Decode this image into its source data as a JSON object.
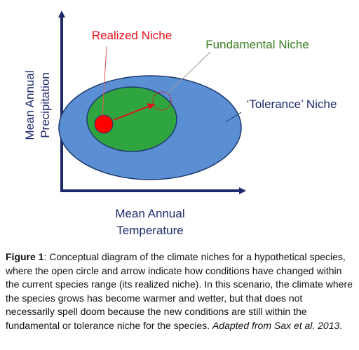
{
  "diagram": {
    "labels": {
      "realized_niche": "Realized Niche",
      "fundamental_niche": "Fundamental Niche",
      "tolerance_niche": "‘Tolerance’ Niche"
    },
    "y_axis_label": {
      "line1": "Mean Annual",
      "line2": "Precipitation"
    },
    "x_axis_label": {
      "line1": "Mean Annual",
      "line2": "Temperature"
    },
    "colors": {
      "realized": "#ff0000",
      "realized_label": "#e8101a",
      "fundamental": "#2fa53f",
      "fundamental_label": "#3b7f23",
      "tolerance": "#5b8fd4",
      "axis": "#1f2a6b",
      "arrow": "#e01020",
      "outline": "#1d3a6e"
    }
  },
  "caption": {
    "figure_label": "Figure 1",
    "text": ": Conceptual diagram of the climate niches for a hypothetical species, where the open circle and arrow indicate how conditions have changed within the current species range (its realized niche). In this scenario, the climate where the species grows has become warmer and wetter, but that does not necessarily spell doom because the new conditions are still within the fundamental or tolerance niche for the species. ",
    "citation": "Adapted from Sax et al. 2013",
    "end": "."
  }
}
